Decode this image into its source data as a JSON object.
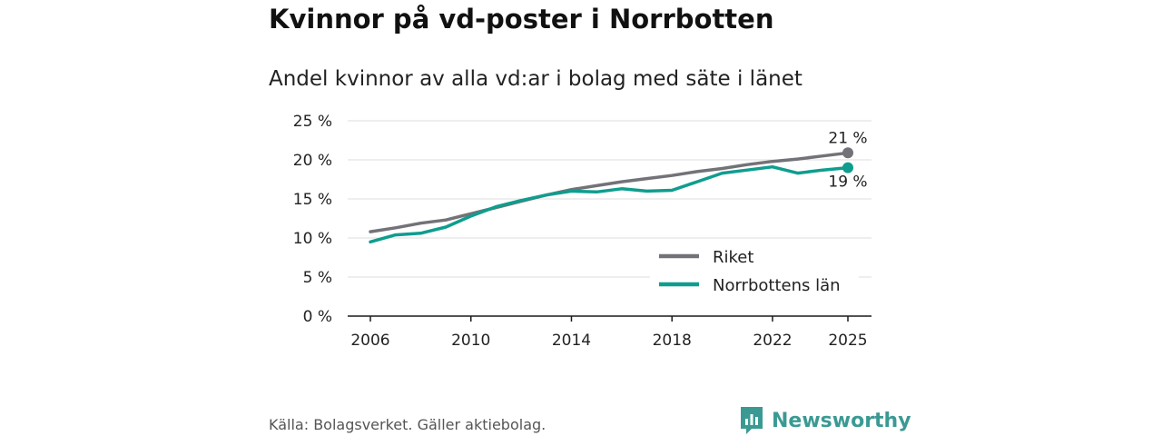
{
  "title": "Kvinnor på vd-poster i Norrbotten",
  "subtitle": "Andel kvinnor av alla vd:ar i bolag med säte i länet",
  "source": "Källa: Bolagsverket. Gäller aktiebolag.",
  "brand": {
    "name": "Newsworthy",
    "icon": "newsworthy-logo-icon",
    "color": "#3a9a93"
  },
  "chart_data": {
    "type": "line",
    "title": "Kvinnor på vd-poster i Norrbotten",
    "subtitle": "Andel kvinnor av alla vd:ar i bolag med säte i länet",
    "xlabel": "",
    "ylabel": "",
    "x": [
      2006,
      2007,
      2008,
      2009,
      2010,
      2011,
      2012,
      2013,
      2014,
      2015,
      2016,
      2017,
      2018,
      2019,
      2020,
      2021,
      2022,
      2023,
      2024,
      2025
    ],
    "xticks": [
      "2006",
      "2010",
      "2014",
      "2018",
      "2022",
      "2025"
    ],
    "xtick_values": [
      2006,
      2010,
      2014,
      2018,
      2022,
      2025
    ],
    "yticks": [
      "0 %",
      "5 %",
      "10 %",
      "15 %",
      "20 %",
      "25 %"
    ],
    "ytick_values": [
      0,
      5,
      10,
      15,
      20,
      25
    ],
    "ylim": [
      0,
      25
    ],
    "xlim": [
      2006,
      2025
    ],
    "grid": true,
    "legend_position": "bottom-right",
    "series": [
      {
        "name": "Riket",
        "color": "#737278",
        "values": [
          10.8,
          11.3,
          11.9,
          12.3,
          13.1,
          13.9,
          14.7,
          15.5,
          16.2,
          16.7,
          17.2,
          17.6,
          18.0,
          18.5,
          18.9,
          19.4,
          19.8,
          20.1,
          20.5,
          20.9
        ],
        "end_label": "21 %"
      },
      {
        "name": "Norrbottens län",
        "color": "#0f9d8e",
        "values": [
          9.5,
          10.4,
          10.6,
          11.4,
          12.8,
          14.0,
          14.8,
          15.5,
          16.0,
          15.9,
          16.3,
          16.0,
          16.1,
          17.2,
          18.3,
          18.7,
          19.1,
          18.3,
          18.7,
          19.0
        ],
        "end_label": "19 %"
      }
    ]
  }
}
